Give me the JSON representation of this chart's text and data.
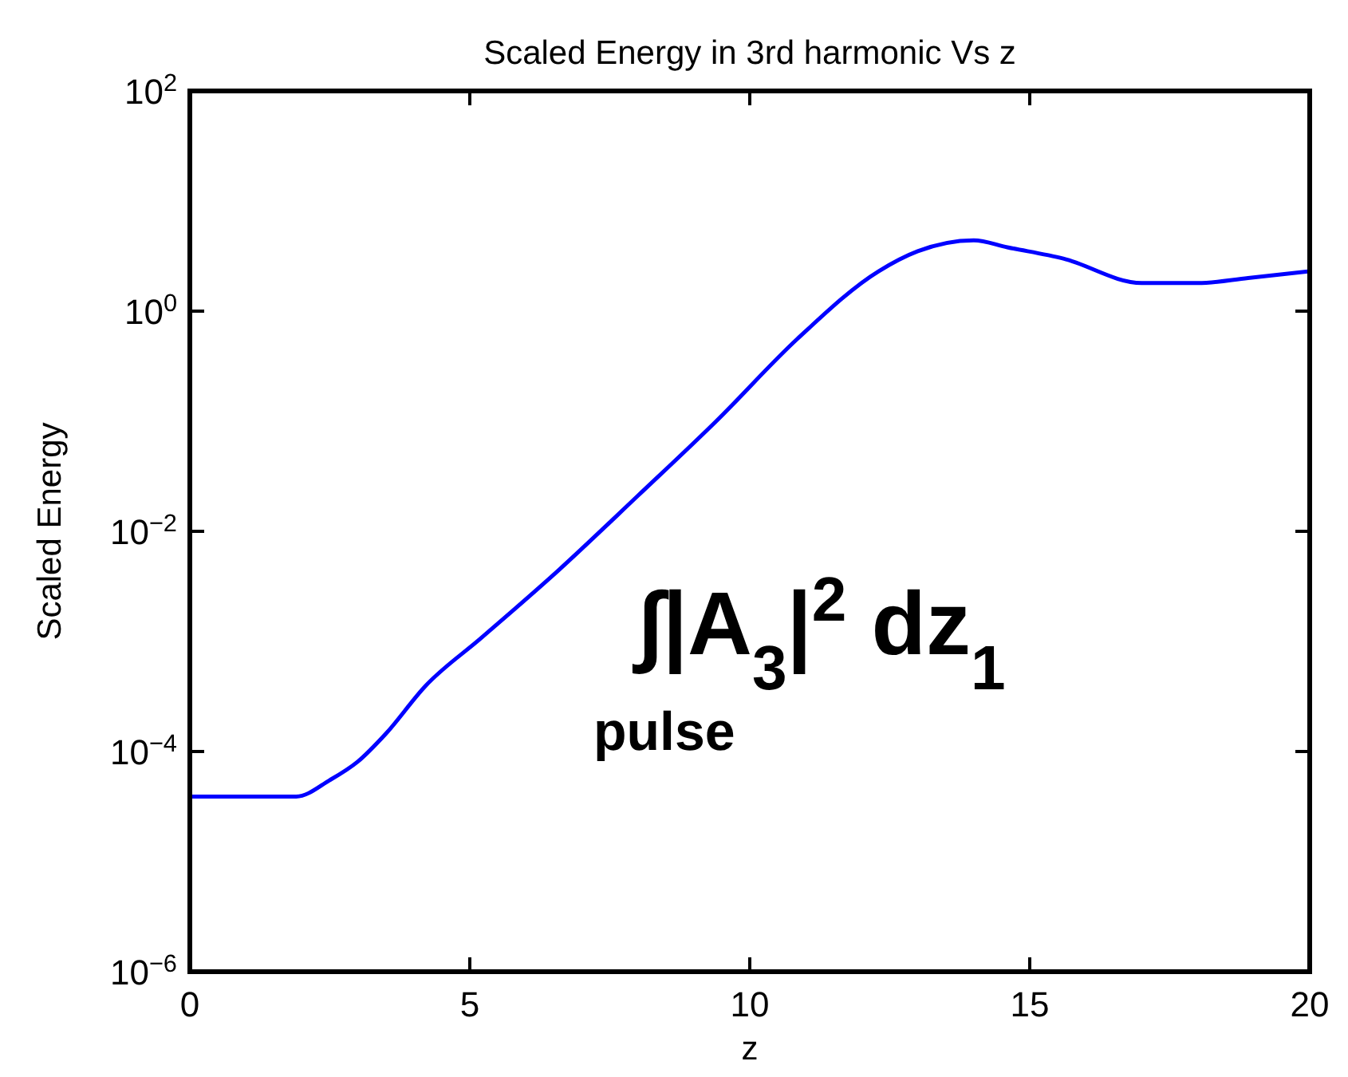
{
  "chart_data": {
    "type": "line",
    "title": "Scaled Energy in 3rd harmonic Vs z",
    "xlabel": "z",
    "ylabel": "Scaled Energy",
    "log": "y",
    "xlim": [
      0,
      20
    ],
    "xticks": [
      0,
      5,
      10,
      15,
      20
    ],
    "ylim": [
      1e-06,
      100
    ],
    "yticks": [
      {
        "value": 1e-06,
        "label": "10$^{−6}$"
      },
      {
        "value": 0.0001,
        "label": "10$^{−4}$"
      },
      {
        "value": 0.01,
        "label": "10$^{−2}$"
      },
      {
        "value": 1,
        "label": "10$^{0}$"
      },
      {
        "value": 100,
        "label": "10$^{2}$"
      }
    ],
    "line_style": "solid",
    "marker": "none",
    "series": [
      {
        "color": "#0000ff",
        "x": [
          0,
          1.9,
          2.5,
          3.0,
          3.5,
          4.2,
          5.2,
          6.6,
          8.0,
          9.4,
          10.85,
          12.3,
          13.0,
          14.0,
          14.6,
          15.6,
          17.0,
          18.0,
          18.9,
          20
        ],
        "values": [
          3.9e-05,
          3.9e-05,
          5.5e-05,
          8.1e-05,
          0.000145,
          0.00039,
          0.00107,
          0.0045,
          0.021,
          0.1,
          0.56,
          2.3,
          3.5,
          4.4,
          3.8,
          3.0,
          1.8,
          1.8,
          2.0,
          2.3
        ]
      }
    ],
    "annotations": [
      "∫|A$_{3}$|$^{2}$ dz$_{1}$",
      "pulse"
    ]
  }
}
